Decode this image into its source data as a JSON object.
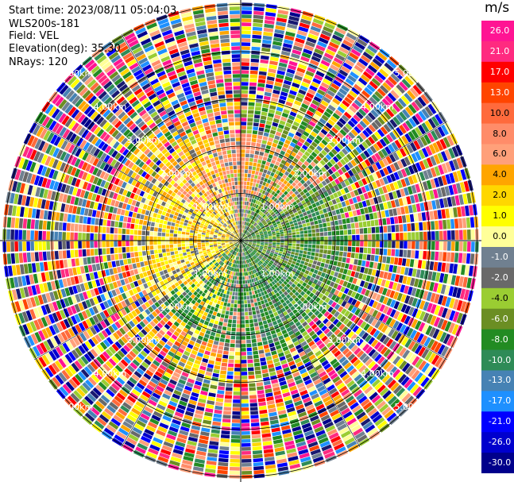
{
  "header": {
    "start_time": "Start time: 2023/08/11 05:04:03",
    "instrument": "WLS200s-181",
    "field": "Field: VEL",
    "elevation": "Elevation(deg): 35.30",
    "nrays": "NRays: 120"
  },
  "range_rings": [
    {
      "label": "1.00km"
    },
    {
      "label": "2.00km"
    },
    {
      "label": "3.00km"
    },
    {
      "label": "4.00km"
    },
    {
      "label": "5.00km"
    }
  ],
  "colorbar": {
    "units": "m/s",
    "ticks": [
      "26.0",
      "21.0",
      "17.0",
      "13.0",
      "10.0",
      "8.0",
      "6.0",
      "4.0",
      "2.0",
      "1.0",
      "0.0",
      "-1.0",
      "-2.0",
      "-4.0",
      "-6.0",
      "-8.0",
      "-10.0",
      "-13.0",
      "-17.0",
      "-21.0",
      "-26.0",
      "-30.0"
    ],
    "colors": [
      "#ff1493",
      "#ff2a80",
      "#ff0000",
      "#ff4500",
      "#ff6a3c",
      "#ff8c69",
      "#ffa07a",
      "#ffa500",
      "#ffd700",
      "#ffff00",
      "#ffff99",
      "#708090",
      "#696969",
      "#9acd32",
      "#6b8e23",
      "#228b22",
      "#2e8b57",
      "#4682b4",
      "#1e90ff",
      "#0000ff",
      "#0000cd",
      "#00008b",
      "#191970"
    ]
  }
}
